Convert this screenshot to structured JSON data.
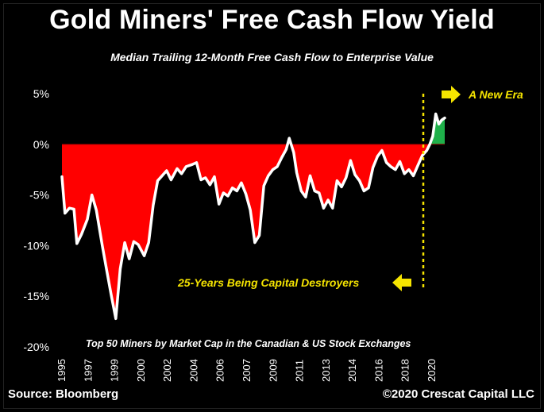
{
  "title": "Gold Miners' Free Cash Flow Yield",
  "subtitle": "Median Trailing 12-Month Free Cash Flow to Enterprise Value",
  "source": "Source: Bloomberg",
  "copyright": "©2020 Crescat Capital LLC",
  "colors": {
    "negative_fill": "#ff0000",
    "positive_fill": "#1fb04a",
    "line": "#ffffff",
    "annotation": "#f5e400",
    "background": "#000000"
  },
  "chart_data": {
    "type": "area",
    "title": "Gold Miners' Free Cash Flow Yield",
    "subtitle": "Median Trailing 12-Month Free Cash Flow to Enterprise Value",
    "xlabel": "",
    "ylabel": "",
    "ylim": [
      -20,
      5
    ],
    "xlim": [
      1995.0,
      2020.6
    ],
    "y_ticks": [
      "5%",
      "0%",
      "-5%",
      "-10%",
      "-15%",
      "-20%"
    ],
    "x_ticks": [
      "1995",
      "1997",
      "1999",
      "2000",
      "2002",
      "2004",
      "2006",
      "2007",
      "2009",
      "2011",
      "2013",
      "2014",
      "2016",
      "2018",
      "2020"
    ],
    "grid": false,
    "annotations": [
      "A New Era",
      "25-Years Being Capital Destroyers",
      "Top 50 Miners by Market Cap in the Canadian & US Stock Exchanges"
    ],
    "series": [
      {
        "values": [
          [
            1995.0,
            -3.2
          ],
          [
            1995.2,
            -6.8
          ],
          [
            1995.5,
            -6.3
          ],
          [
            1995.8,
            -6.4
          ],
          [
            1996.0,
            -9.8
          ],
          [
            1996.3,
            -8.9
          ],
          [
            1996.7,
            -7.4
          ],
          [
            1997.0,
            -5.0
          ],
          [
            1997.3,
            -6.5
          ],
          [
            1997.7,
            -10.0
          ],
          [
            1998.0,
            -12.5
          ],
          [
            1998.3,
            -14.9
          ],
          [
            1998.6,
            -17.2
          ],
          [
            1998.9,
            -12.3
          ],
          [
            1999.2,
            -9.7
          ],
          [
            1999.5,
            -11.3
          ],
          [
            1999.8,
            -9.6
          ],
          [
            2000.1,
            -9.9
          ],
          [
            2000.5,
            -11.0
          ],
          [
            2000.8,
            -9.7
          ],
          [
            2001.1,
            -6.0
          ],
          [
            2001.4,
            -3.6
          ],
          [
            2001.7,
            -3.1
          ],
          [
            2002.0,
            -2.6
          ],
          [
            2002.3,
            -3.5
          ],
          [
            2002.7,
            -2.4
          ],
          [
            2003.0,
            -2.9
          ],
          [
            2003.3,
            -2.2
          ],
          [
            2003.7,
            -2.0
          ],
          [
            2004.0,
            -1.8
          ],
          [
            2004.3,
            -3.5
          ],
          [
            2004.6,
            -3.3
          ],
          [
            2004.9,
            -4.0
          ],
          [
            2005.2,
            -3.2
          ],
          [
            2005.5,
            -5.9
          ],
          [
            2005.8,
            -4.8
          ],
          [
            2006.1,
            -5.1
          ],
          [
            2006.4,
            -4.3
          ],
          [
            2006.7,
            -4.6
          ],
          [
            2007.0,
            -3.8
          ],
          [
            2007.3,
            -4.9
          ],
          [
            2007.6,
            -6.5
          ],
          [
            2007.9,
            -9.7
          ],
          [
            2008.2,
            -9.0
          ],
          [
            2008.5,
            -4.1
          ],
          [
            2008.8,
            -3.1
          ],
          [
            2009.1,
            -2.5
          ],
          [
            2009.4,
            -2.2
          ],
          [
            2009.7,
            -1.3
          ],
          [
            2010.0,
            -0.5
          ],
          [
            2010.2,
            0.6
          ],
          [
            2010.5,
            -0.8
          ],
          [
            2010.7,
            -2.8
          ],
          [
            2011.0,
            -4.6
          ],
          [
            2011.3,
            -5.2
          ],
          [
            2011.6,
            -3.1
          ],
          [
            2011.9,
            -4.6
          ],
          [
            2012.2,
            -4.8
          ],
          [
            2012.5,
            -6.3
          ],
          [
            2012.8,
            -5.5
          ],
          [
            2013.1,
            -6.3
          ],
          [
            2013.4,
            -3.6
          ],
          [
            2013.7,
            -4.2
          ],
          [
            2014.0,
            -3.3
          ],
          [
            2014.3,
            -1.6
          ],
          [
            2014.6,
            -3.0
          ],
          [
            2014.9,
            -3.6
          ],
          [
            2015.2,
            -4.6
          ],
          [
            2015.5,
            -4.3
          ],
          [
            2015.8,
            -2.3
          ],
          [
            2016.1,
            -1.2
          ],
          [
            2016.4,
            -0.6
          ],
          [
            2016.7,
            -1.8
          ],
          [
            2017.0,
            -2.2
          ],
          [
            2017.3,
            -2.5
          ],
          [
            2017.6,
            -1.7
          ],
          [
            2017.9,
            -2.9
          ],
          [
            2018.2,
            -2.5
          ],
          [
            2018.5,
            -3.1
          ],
          [
            2018.8,
            -2.1
          ],
          [
            2019.1,
            -1.1
          ],
          [
            2019.4,
            -0.6
          ],
          [
            2019.6,
            0.0
          ],
          [
            2019.8,
            0.8
          ],
          [
            2020.0,
            3.0
          ],
          [
            2020.2,
            2.0
          ],
          [
            2020.4,
            2.4
          ],
          [
            2020.6,
            2.6
          ]
        ]
      }
    ]
  }
}
